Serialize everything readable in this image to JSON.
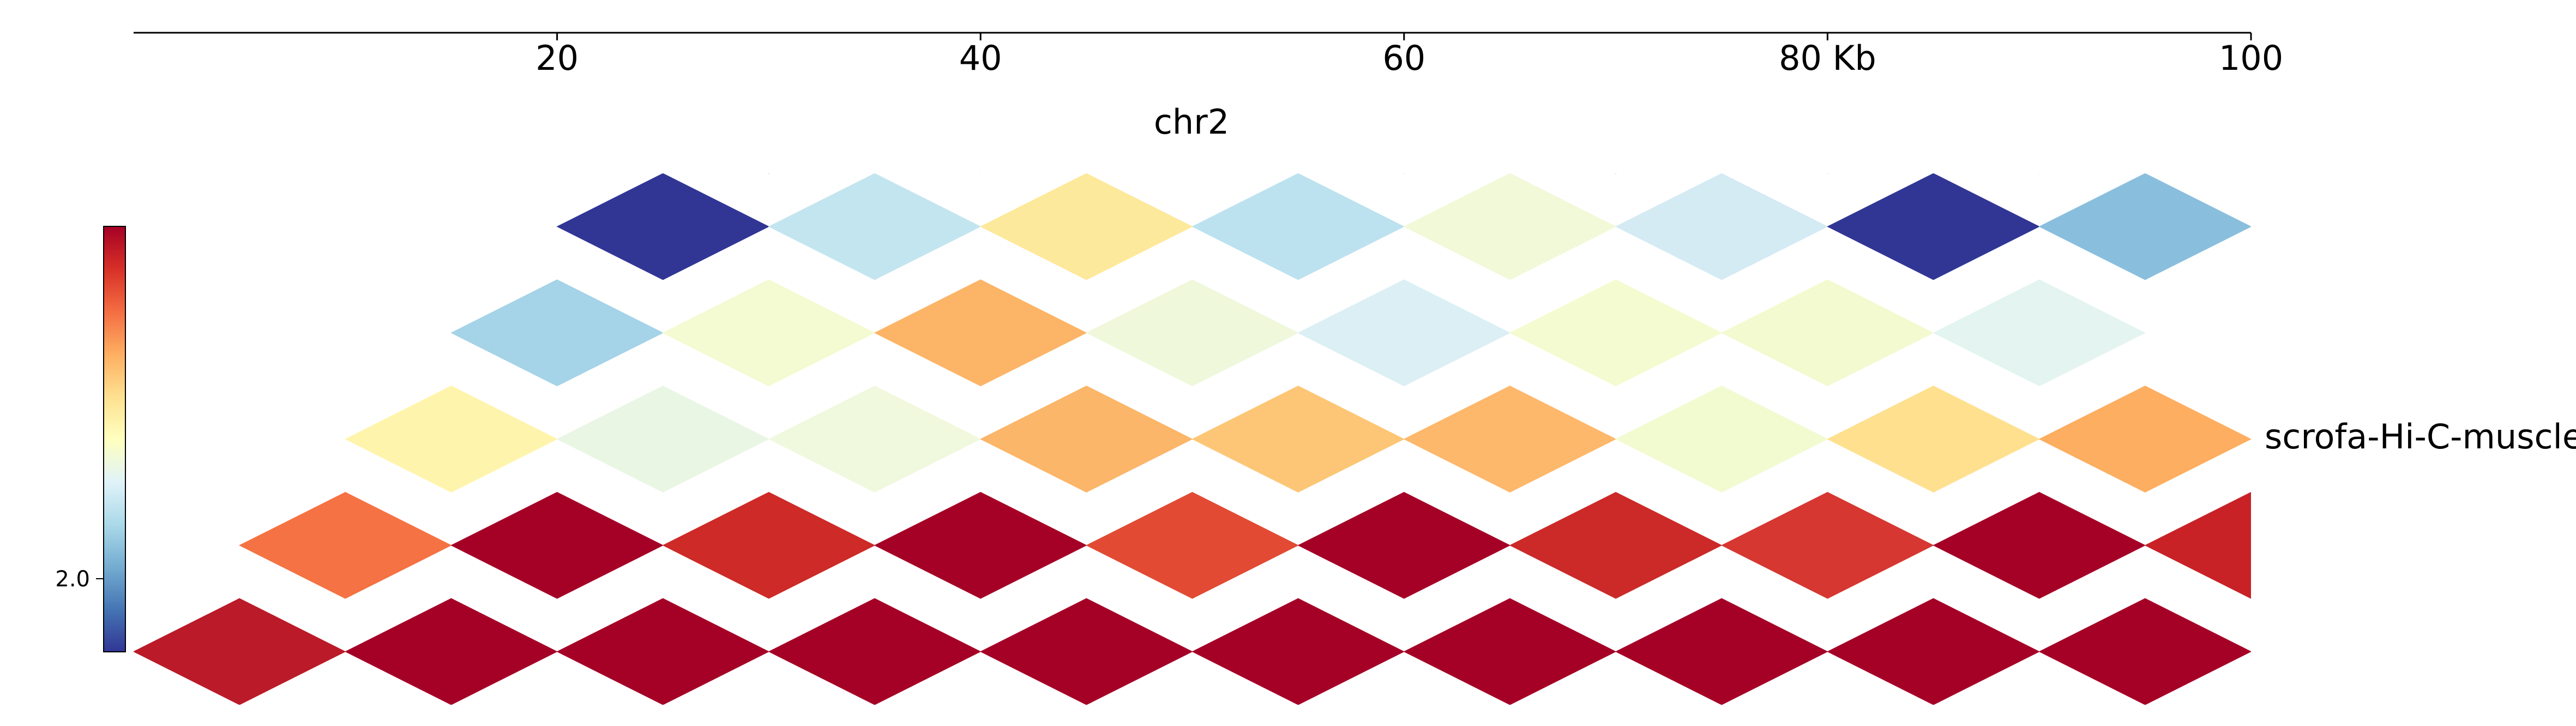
{
  "chart_data": {
    "type": "heatmap",
    "title": "chr2",
    "track_label": "scrofa-Hi-C-muscle.",
    "genome_axis": {
      "range": [
        0,
        100
      ],
      "ticks": [
        {
          "value": 20,
          "label": "20"
        },
        {
          "value": 40,
          "label": "40"
        },
        {
          "value": 60,
          "label": "60"
        },
        {
          "value": 80,
          "label": "80 Kb"
        },
        {
          "value": 100,
          "label": "100"
        }
      ]
    },
    "bin_size_kb": 10,
    "max_depth_bins": 5,
    "colormap": "RdYlBu_r",
    "colorbar": {
      "ticks": [
        {
          "value": 2.0,
          "label": "2.0"
        }
      ]
    },
    "grid": false,
    "rows": [
      {
        "distance_bins": 0,
        "colors": [
          "#bb1a28",
          "#a50026",
          "#a50026",
          "#a50026",
          "#a50026",
          "#a50026",
          "#a50026",
          "#a50026",
          "#a50026",
          "#a50026"
        ]
      },
      {
        "distance_bins": 1,
        "colors": [
          "#f57244",
          "#a50026",
          "#cd2a28",
          "#a50026",
          "#e24a33",
          "#a50026",
          "#cb2a28",
          "#d63730",
          "#a50026",
          "#c82227"
        ]
      },
      {
        "distance_bins": 2,
        "colors": [
          "#fff4ac",
          "#eaf6e4",
          "#f0f9de",
          "#fbb669",
          "#fdc676",
          "#fdb86b",
          "#f2fad0",
          "#fee08f",
          "#fdae61"
        ]
      },
      {
        "distance_bins": 3,
        "colors": [
          "#a5d3e7",
          "#f4fad1",
          "#fcb467",
          "#eff8db",
          "#dbeff5",
          "#f5fbd0",
          "#f3fad0",
          "#e4f4f1"
        ]
      },
      {
        "distance_bins": 4,
        "colors": [
          "#313695",
          "#c3e5ef",
          "#fde99b",
          "#bde2ef",
          "#f1f9d8",
          "#d4ebf3",
          "#313695",
          "#89bfdd"
        ]
      },
      {
        "distance_bins": 5,
        "colors": [
          "#313695",
          "#8ebfdc",
          "#fef5b2",
          "#6196c7",
          "#313695",
          "#4574b3",
          "#82b5d8",
          "#4574b3"
        ]
      }
    ]
  }
}
